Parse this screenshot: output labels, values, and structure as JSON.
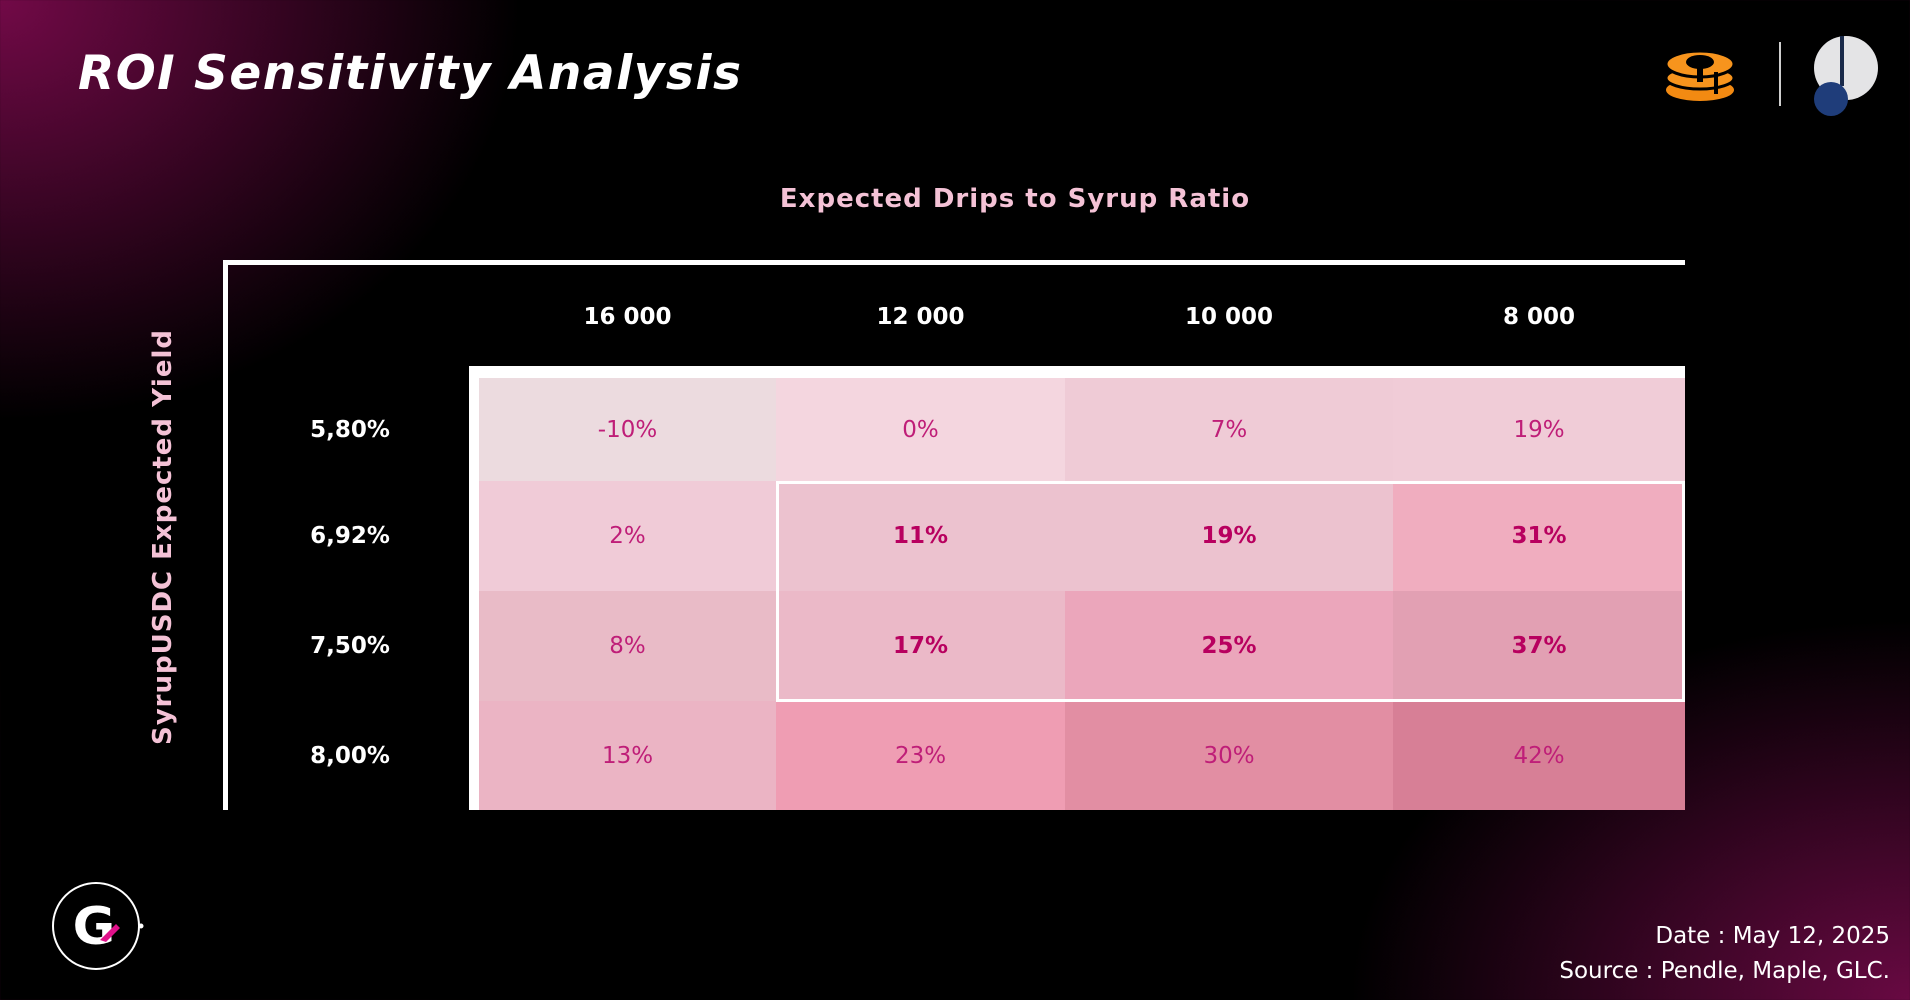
{
  "header": {
    "title": "ROI Sensitivity Analysis"
  },
  "icons": {
    "left_brand": "stacked-coins-icon",
    "right_brand": "circle-logo-icon",
    "bottom_logo": "g-circle-logo-icon"
  },
  "colors": {
    "accent_pink": "#f4c2d6",
    "cell_text": "#bf1e78",
    "background": "#000000"
  },
  "chart_data": {
    "type": "heatmap",
    "title": "ROI Sensitivity Analysis",
    "column_axis_title": "Expected Drips to Syrup Ratio",
    "row_axis_title": "SyrupUSDC Expected Yield",
    "columns": [
      "16 000",
      "12 000",
      "10 000",
      "8 000"
    ],
    "rows": [
      "5,80%",
      "6,92%",
      "7,50%",
      "8,00%"
    ],
    "values": [
      [
        "-10%",
        "0%",
        "7%",
        "19%"
      ],
      [
        "2%",
        "11%",
        "19%",
        "31%"
      ],
      [
        "8%",
        "17%",
        "25%",
        "37%"
      ],
      [
        "13%",
        "23%",
        "30%",
        "42%"
      ]
    ],
    "cell_colors": [
      [
        "#ecdbdf",
        "#f4d6df",
        "#efcbd6",
        "#f0ccd7"
      ],
      [
        "#f0cbd7",
        "#ecc2cf",
        "#ecc2cf",
        "#f0adbf"
      ],
      [
        "#e9bbc7",
        "#ebb9c8",
        "#eba6bb",
        "#e2a0b3"
      ],
      [
        "#ebb4c4",
        "#ef9db3",
        "#e28ea3",
        "#d77f96"
      ]
    ],
    "highlighted_region": {
      "rows": [
        "6,92%",
        "7,50%"
      ],
      "columns": [
        "12 000",
        "10 000",
        "8 000"
      ]
    }
  },
  "footer": {
    "date": "Date : May 12, 2025",
    "source": "Source : Pendle, Maple, GLC."
  }
}
